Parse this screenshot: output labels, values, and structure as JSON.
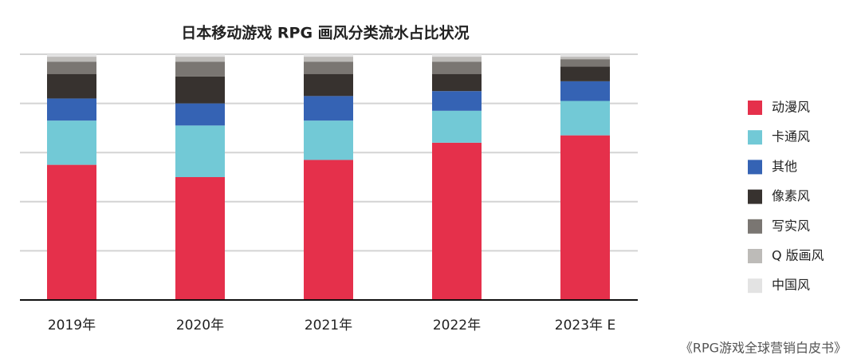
{
  "chart_data": {
    "type": "bar",
    "stacked": true,
    "title": "日本移动游戏 RPG 画风分类流水占比状况",
    "source": "《RPG游戏全球营销白皮书》",
    "categories": [
      "2019年",
      "2020年",
      "2021年",
      "2022年",
      "2023年 E"
    ],
    "series": [
      {
        "name": "动漫风",
        "color": "#e5304b",
        "values": [
          55,
          50,
          57,
          64,
          67
        ]
      },
      {
        "name": "卡通风",
        "color": "#72c9d6",
        "values": [
          18,
          21,
          16,
          13,
          14
        ]
      },
      {
        "name": "其他",
        "color": "#3563b4",
        "values": [
          9,
          9,
          10,
          8,
          8
        ]
      },
      {
        "name": "像素风",
        "color": "#37322f",
        "values": [
          10,
          11,
          9,
          7,
          6
        ]
      },
      {
        "name": "写实风",
        "color": "#7a7672",
        "values": [
          5,
          6,
          5,
          5,
          3
        ]
      },
      {
        "name": "Q 版画风",
        "color": "#bdbbb8",
        "values": [
          2,
          2,
          2,
          2,
          1
        ]
      },
      {
        "name": "中国风",
        "color": "#e3e3e3",
        "values": [
          1,
          1,
          1,
          1,
          1
        ]
      }
    ],
    "ylim": [
      0,
      100
    ],
    "yticks": [
      0,
      20,
      40,
      60,
      80,
      100
    ],
    "grid": true,
    "legend": "right"
  }
}
